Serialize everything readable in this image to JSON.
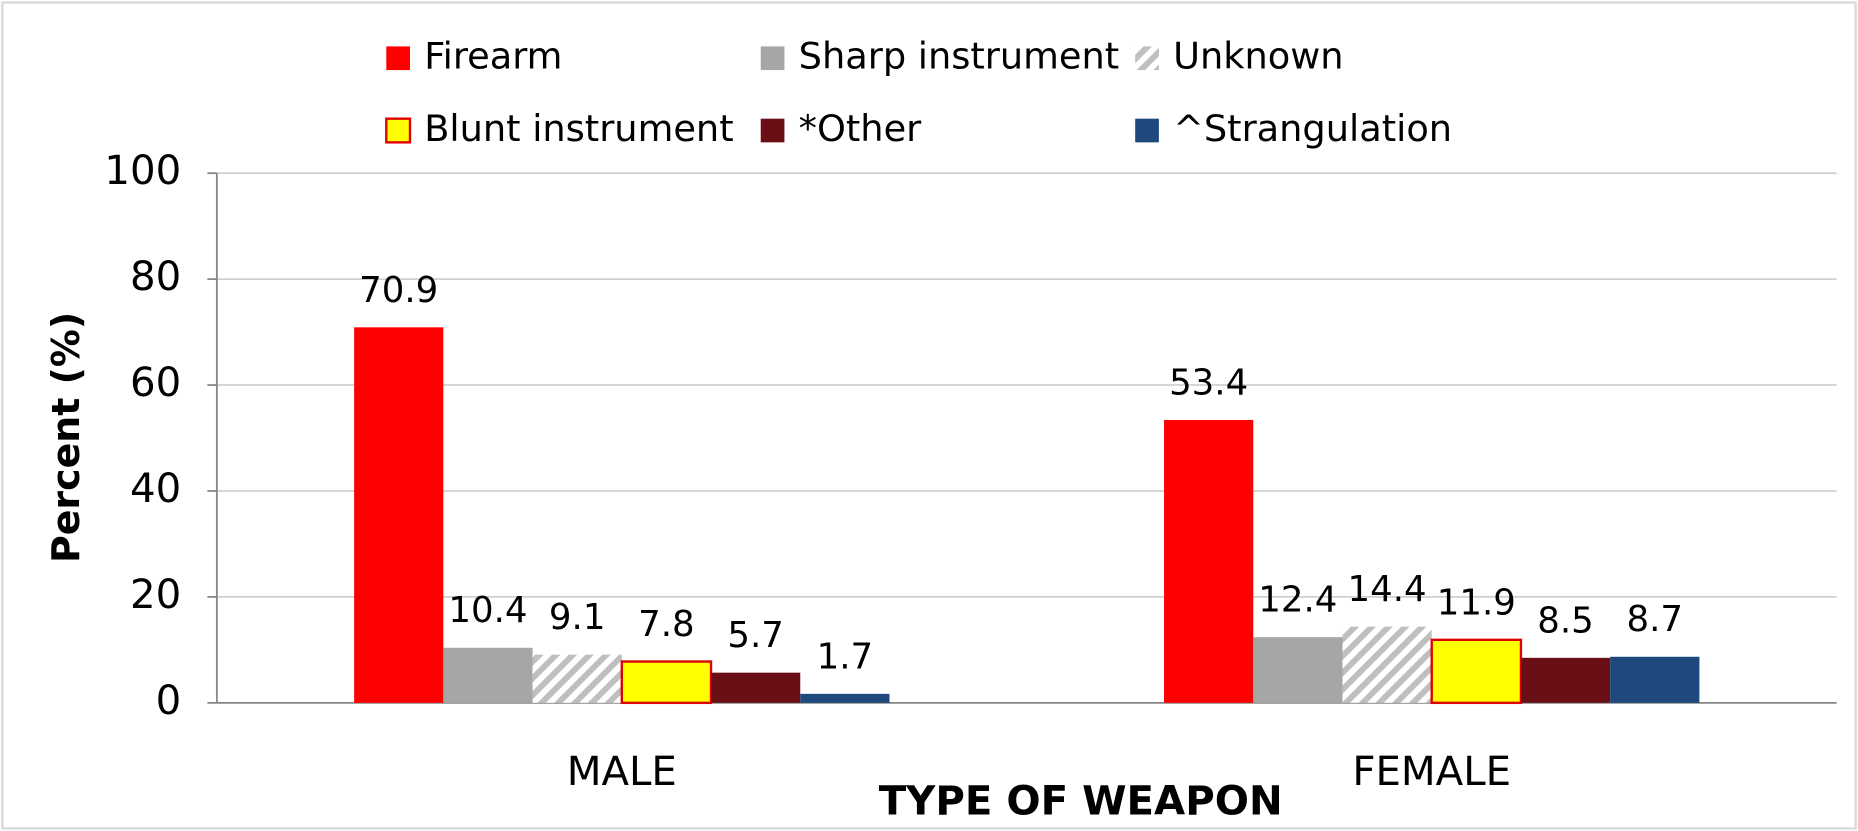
{
  "chart_data": {
    "type": "bar",
    "xlabel": "TYPE OF WEAPON",
    "ylabel": "Percent (%)",
    "categories": [
      "MALE",
      "FEMALE"
    ],
    "series": [
      {
        "name": "Firearm",
        "color": "#ff0000",
        "values": [
          70.9,
          53.4
        ]
      },
      {
        "name": "Sharp instrument",
        "color": "#a6a6a6",
        "values": [
          10.4,
          12.4
        ]
      },
      {
        "name": "Unknown",
        "color": "#bfbfbf",
        "pattern": "hatch",
        "values": [
          9.1,
          14.4
        ]
      },
      {
        "name": "Blunt instrument",
        "color": "#ffff00",
        "edgecolor": "#e00000",
        "values": [
          7.8,
          11.9
        ]
      },
      {
        "name": "*Other",
        "color": "#6b0f16",
        "values": [
          5.7,
          8.5
        ]
      },
      {
        "name": "^Strangulation",
        "color": "#1f497d",
        "values": [
          1.7,
          8.7
        ]
      }
    ],
    "ylim": [
      0,
      100
    ],
    "yticks": [
      0,
      20,
      40,
      60,
      80,
      100
    ],
    "grid": true,
    "legend": "top"
  }
}
